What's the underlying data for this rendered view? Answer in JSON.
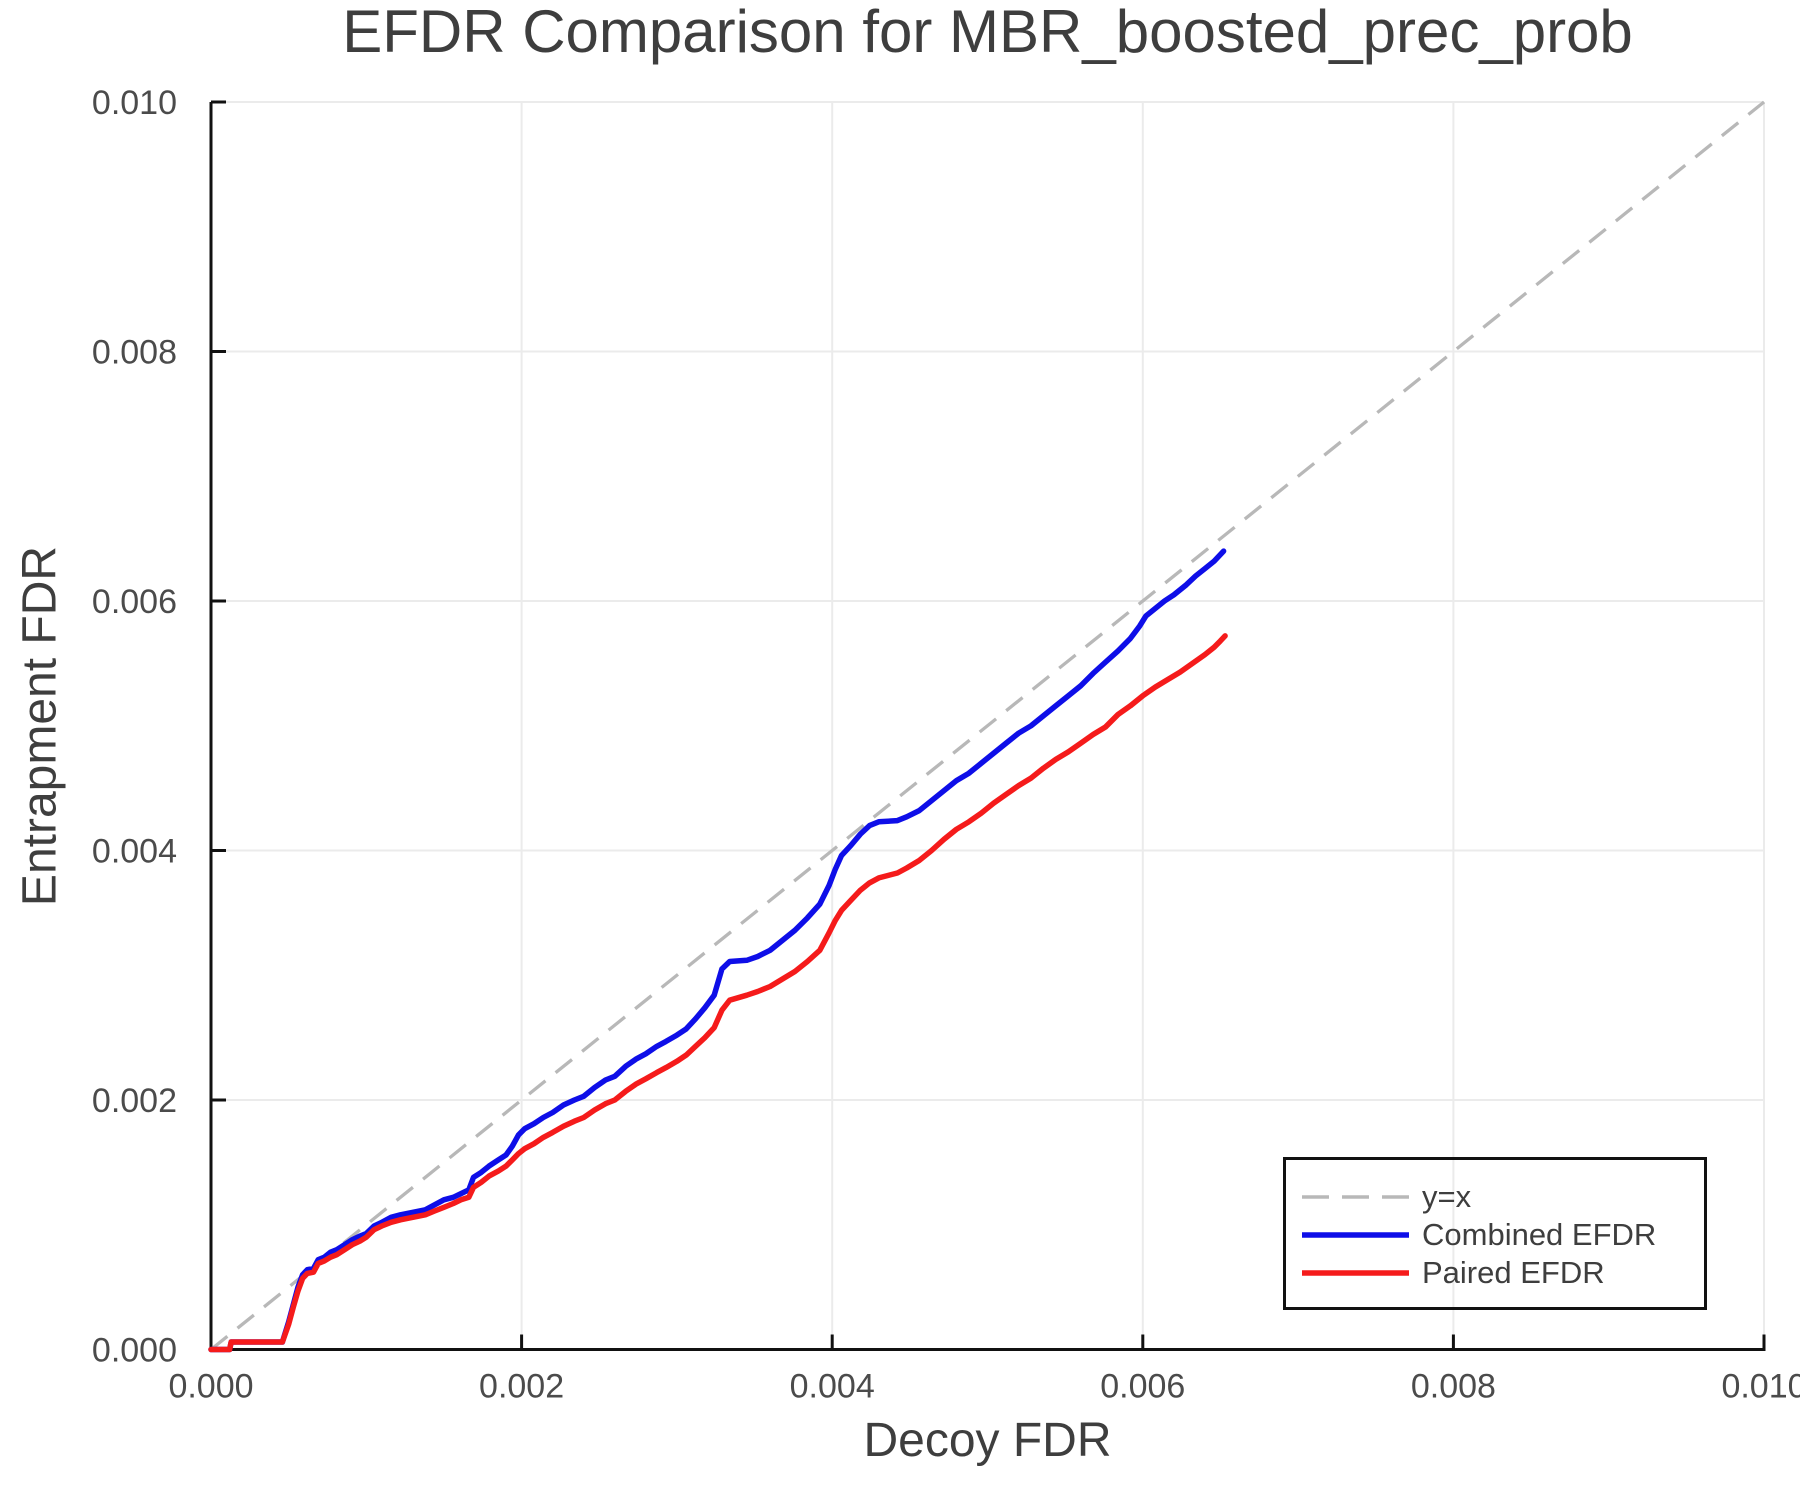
{
  "chart_data": {
    "type": "line",
    "title": "EFDR Comparison for MBR_boosted_prec_prob",
    "xlabel": "Decoy FDR",
    "ylabel": "Entrapment FDR",
    "xlim": [
      0.0,
      0.01
    ],
    "ylim": [
      0.0,
      0.01
    ],
    "x_ticks": [
      0.0,
      0.002,
      0.004,
      0.006,
      0.008,
      0.01
    ],
    "x_tick_labels": [
      "0.000",
      "0.002",
      "0.004",
      "0.006",
      "0.008",
      "0.010"
    ],
    "y_ticks": [
      0.0,
      0.002,
      0.004,
      0.006,
      0.008,
      0.01
    ],
    "y_tick_labels": [
      "0.000",
      "0.002",
      "0.004",
      "0.006",
      "0.008",
      "0.010"
    ],
    "grid": true,
    "legend_position": "lower right",
    "colors": {
      "grid": "#ebebeb",
      "spine": "#111111",
      "tick_text": "#4b4b4b"
    },
    "reference_line": {
      "label": "y=x",
      "style": "dashed",
      "color": "#b8b8b8",
      "from": [
        0.0,
        0.0
      ],
      "to": [
        0.01,
        0.01
      ]
    },
    "series": [
      {
        "name": "Combined EFDR",
        "color": "#0e0ee8",
        "points": [
          [
            0.0,
            0.0
          ],
          [
            0.00012,
            0.0
          ],
          [
            0.00013,
            6e-05
          ],
          [
            0.00046,
            6e-05
          ],
          [
            0.0005,
            0.00022
          ],
          [
            0.00053,
            0.00036
          ],
          [
            0.00056,
            0.0005
          ],
          [
            0.00059,
            0.0006
          ],
          [
            0.00062,
            0.00064
          ],
          [
            0.00066,
            0.00065
          ],
          [
            0.00069,
            0.00072
          ],
          [
            0.00073,
            0.00074
          ],
          [
            0.00077,
            0.00078
          ],
          [
            0.00081,
            0.0008
          ],
          [
            0.00086,
            0.00084
          ],
          [
            0.00091,
            0.00088
          ],
          [
            0.00096,
            0.00091
          ],
          [
            0.001,
            0.00093
          ],
          [
            0.00105,
            0.00099
          ],
          [
            0.0011,
            0.00102
          ],
          [
            0.00116,
            0.00106
          ],
          [
            0.00122,
            0.00108
          ],
          [
            0.0013,
            0.0011
          ],
          [
            0.00138,
            0.00112
          ],
          [
            0.00144,
            0.00116
          ],
          [
            0.0015,
            0.0012
          ],
          [
            0.00156,
            0.00122
          ],
          [
            0.00161,
            0.00125
          ],
          [
            0.00166,
            0.00128
          ],
          [
            0.00169,
            0.00138
          ],
          [
            0.00174,
            0.00142
          ],
          [
            0.00179,
            0.00147
          ],
          [
            0.00185,
            0.00152
          ],
          [
            0.0019,
            0.00156
          ],
          [
            0.00194,
            0.00163
          ],
          [
            0.00198,
            0.00172
          ],
          [
            0.00202,
            0.00177
          ],
          [
            0.00208,
            0.00181
          ],
          [
            0.00214,
            0.00186
          ],
          [
            0.0022,
            0.0019
          ],
          [
            0.00227,
            0.00196
          ],
          [
            0.00234,
            0.002
          ],
          [
            0.0024,
            0.00203
          ],
          [
            0.00247,
            0.0021
          ],
          [
            0.00254,
            0.00216
          ],
          [
            0.0026,
            0.00219
          ],
          [
            0.00267,
            0.00227
          ],
          [
            0.00274,
            0.00233
          ],
          [
            0.0028,
            0.00237
          ],
          [
            0.00287,
            0.00243
          ],
          [
            0.00293,
            0.00247
          ],
          [
            0.003,
            0.00252
          ],
          [
            0.00306,
            0.00257
          ],
          [
            0.00312,
            0.00265
          ],
          [
            0.00318,
            0.00274
          ],
          [
            0.00324,
            0.00284
          ],
          [
            0.00329,
            0.00305
          ],
          [
            0.00334,
            0.00311
          ],
          [
            0.00345,
            0.00312
          ],
          [
            0.00352,
            0.00315
          ],
          [
            0.0036,
            0.0032
          ],
          [
            0.00368,
            0.00328
          ],
          [
            0.00376,
            0.00336
          ],
          [
            0.00384,
            0.00346
          ],
          [
            0.00392,
            0.00357
          ],
          [
            0.00398,
            0.00372
          ],
          [
            0.00402,
            0.00385
          ],
          [
            0.00406,
            0.00396
          ],
          [
            0.00412,
            0.00404
          ],
          [
            0.00418,
            0.00413
          ],
          [
            0.00424,
            0.0042
          ],
          [
            0.0043,
            0.00423
          ],
          [
            0.00442,
            0.00424
          ],
          [
            0.00448,
            0.00427
          ],
          [
            0.00456,
            0.00432
          ],
          [
            0.00464,
            0.0044
          ],
          [
            0.00472,
            0.00448
          ],
          [
            0.0048,
            0.00456
          ],
          [
            0.00488,
            0.00462
          ],
          [
            0.00496,
            0.0047
          ],
          [
            0.00504,
            0.00478
          ],
          [
            0.00512,
            0.00486
          ],
          [
            0.0052,
            0.00494
          ],
          [
            0.00528,
            0.005
          ],
          [
            0.00536,
            0.00508
          ],
          [
            0.00544,
            0.00516
          ],
          [
            0.00552,
            0.00524
          ],
          [
            0.0056,
            0.00532
          ],
          [
            0.00568,
            0.00542
          ],
          [
            0.00576,
            0.00551
          ],
          [
            0.00584,
            0.0056
          ],
          [
            0.00592,
            0.0057
          ],
          [
            0.00598,
            0.0058
          ],
          [
            0.00602,
            0.00588
          ],
          [
            0.00608,
            0.00594
          ],
          [
            0.00614,
            0.006
          ],
          [
            0.0062,
            0.00605
          ],
          [
            0.00628,
            0.00613
          ],
          [
            0.00634,
            0.0062
          ],
          [
            0.0064,
            0.00626
          ],
          [
            0.00646,
            0.00632
          ],
          [
            0.00652,
            0.0064
          ]
        ]
      },
      {
        "name": "Paired EFDR",
        "color": "#f51b1b",
        "points": [
          [
            0.0,
            0.0
          ],
          [
            0.00012,
            0.0
          ],
          [
            0.00013,
            6e-05
          ],
          [
            0.00046,
            6e-05
          ],
          [
            0.0005,
            0.0002
          ],
          [
            0.00053,
            0.00034
          ],
          [
            0.00056,
            0.00047
          ],
          [
            0.00059,
            0.00057
          ],
          [
            0.00062,
            0.00061
          ],
          [
            0.00066,
            0.00062
          ],
          [
            0.00069,
            0.00069
          ],
          [
            0.00073,
            0.00071
          ],
          [
            0.00077,
            0.00074
          ],
          [
            0.00081,
            0.00076
          ],
          [
            0.00086,
            0.0008
          ],
          [
            0.00091,
            0.00084
          ],
          [
            0.00096,
            0.00087
          ],
          [
            0.001,
            0.0009
          ],
          [
            0.00105,
            0.00096
          ],
          [
            0.0011,
            0.00099
          ],
          [
            0.00116,
            0.00102
          ],
          [
            0.00122,
            0.00104
          ],
          [
            0.0013,
            0.00106
          ],
          [
            0.00138,
            0.00108
          ],
          [
            0.00144,
            0.00111
          ],
          [
            0.0015,
            0.00114
          ],
          [
            0.00156,
            0.00117
          ],
          [
            0.00161,
            0.0012
          ],
          [
            0.00166,
            0.00122
          ],
          [
            0.00169,
            0.0013
          ],
          [
            0.00174,
            0.00134
          ],
          [
            0.00179,
            0.00139
          ],
          [
            0.00185,
            0.00143
          ],
          [
            0.0019,
            0.00147
          ],
          [
            0.00194,
            0.00152
          ],
          [
            0.00198,
            0.00157
          ],
          [
            0.00202,
            0.00161
          ],
          [
            0.00208,
            0.00165
          ],
          [
            0.00214,
            0.0017
          ],
          [
            0.0022,
            0.00174
          ],
          [
            0.00227,
            0.00179
          ],
          [
            0.00234,
            0.00183
          ],
          [
            0.0024,
            0.00186
          ],
          [
            0.00247,
            0.00192
          ],
          [
            0.00254,
            0.00197
          ],
          [
            0.0026,
            0.002
          ],
          [
            0.00267,
            0.00207
          ],
          [
            0.00274,
            0.00213
          ],
          [
            0.0028,
            0.00217
          ],
          [
            0.00287,
            0.00222
          ],
          [
            0.00293,
            0.00226
          ],
          [
            0.003,
            0.00231
          ],
          [
            0.00306,
            0.00236
          ],
          [
            0.00312,
            0.00243
          ],
          [
            0.00318,
            0.0025
          ],
          [
            0.00324,
            0.00258
          ],
          [
            0.00329,
            0.00272
          ],
          [
            0.00334,
            0.0028
          ],
          [
            0.00345,
            0.00284
          ],
          [
            0.00352,
            0.00287
          ],
          [
            0.0036,
            0.00291
          ],
          [
            0.00368,
            0.00297
          ],
          [
            0.00376,
            0.00303
          ],
          [
            0.00384,
            0.00311
          ],
          [
            0.00392,
            0.0032
          ],
          [
            0.00398,
            0.00334
          ],
          [
            0.00402,
            0.00344
          ],
          [
            0.00406,
            0.00352
          ],
          [
            0.00412,
            0.0036
          ],
          [
            0.00418,
            0.00368
          ],
          [
            0.00424,
            0.00374
          ],
          [
            0.0043,
            0.00378
          ],
          [
            0.00442,
            0.00382
          ],
          [
            0.00448,
            0.00386
          ],
          [
            0.00456,
            0.00392
          ],
          [
            0.00464,
            0.004
          ],
          [
            0.00472,
            0.00409
          ],
          [
            0.0048,
            0.00417
          ],
          [
            0.00488,
            0.00423
          ],
          [
            0.00496,
            0.0043
          ],
          [
            0.00504,
            0.00438
          ],
          [
            0.00512,
            0.00445
          ],
          [
            0.0052,
            0.00452
          ],
          [
            0.00528,
            0.00458
          ],
          [
            0.00536,
            0.00466
          ],
          [
            0.00544,
            0.00473
          ],
          [
            0.00552,
            0.00479
          ],
          [
            0.0056,
            0.00486
          ],
          [
            0.00568,
            0.00493
          ],
          [
            0.00576,
            0.00499
          ],
          [
            0.00584,
            0.00509
          ],
          [
            0.00592,
            0.00516
          ],
          [
            0.006,
            0.00524
          ],
          [
            0.00608,
            0.00531
          ],
          [
            0.00616,
            0.00537
          ],
          [
            0.00624,
            0.00543
          ],
          [
            0.00632,
            0.0055
          ],
          [
            0.0064,
            0.00557
          ],
          [
            0.00646,
            0.00563
          ],
          [
            0.0065,
            0.00568
          ],
          [
            0.00653,
            0.00572
          ]
        ]
      }
    ]
  }
}
